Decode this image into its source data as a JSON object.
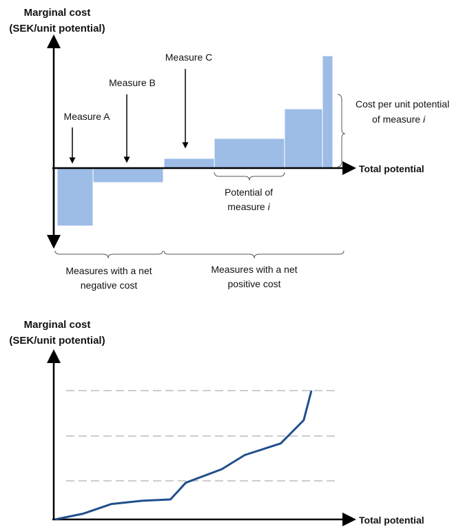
{
  "top_diagram": {
    "y_axis_label_line1": "Marginal cost",
    "y_axis_label_line2": "(SEK/unit potential)",
    "x_axis_label": "Total potential",
    "measure_a": "Measure A",
    "measure_b": "Measure B",
    "measure_c": "Measure C",
    "cost_per_unit_line1": "Cost per unit potential",
    "cost_per_unit_line2_prefix": "of measure ",
    "cost_per_unit_line2_var": "i",
    "potential_line1": "Potential of",
    "potential_line2_prefix": "measure ",
    "potential_line2_var": "i",
    "negative_line1": "Measures with a net",
    "negative_line2": "negative cost",
    "positive_line1": "Measures with a net",
    "positive_line2": "positive cost",
    "bar_color": "#9dbce6"
  },
  "bottom_chart": {
    "y_axis_label_line1": "Marginal cost",
    "y_axis_label_line2": "(SEK/unit potential)",
    "x_axis_label": "Total potential",
    "line_color": "#1f4e8c",
    "gridline_color": "#cccccc"
  },
  "chart_data": {
    "type": "line",
    "xlabel": "Total potential",
    "ylabel": "Marginal cost (SEK/unit potential)",
    "grid": "dashed horizontal",
    "series": [
      {
        "values": [
          0.0,
          0.09,
          0.24,
          0.29,
          0.31,
          0.57,
          0.78,
          1.0,
          1.18,
          1.54,
          2.0
        ]
      }
    ],
    "x": [
      0.0,
      0.11,
      0.22,
      0.34,
      0.45,
      0.51,
      0.65,
      0.74,
      0.88,
      0.97,
      1.0
    ]
  }
}
